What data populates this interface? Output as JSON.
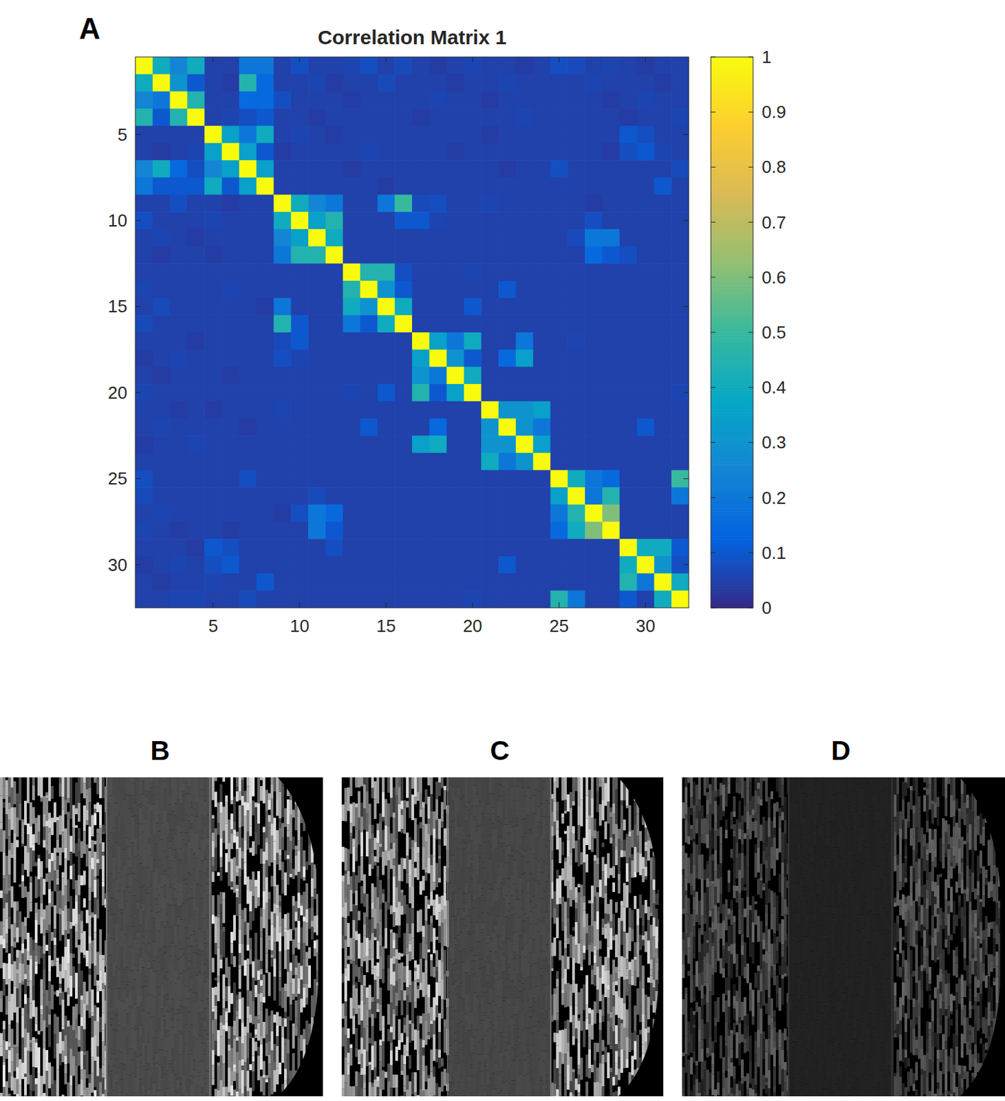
{
  "chart_data": {
    "type": "heatmap",
    "title": "Correlation Matrix 1",
    "panel_label": "A",
    "xlim": [
      0.5,
      32.5
    ],
    "ylim": [
      0.5,
      32.5
    ],
    "xticks": [
      5,
      10,
      15,
      20,
      25,
      30
    ],
    "yticks": [
      5,
      10,
      15,
      20,
      25,
      30
    ],
    "colorbar": {
      "range": [
        0,
        1
      ],
      "ticks": [
        0,
        0.1,
        0.2,
        0.3,
        0.4,
        0.5,
        0.6,
        0.7,
        0.8,
        0.9,
        1
      ]
    },
    "cells": [
      [
        1,
        0.4,
        0.25,
        0.4,
        0.05,
        0.05,
        0.2,
        0.2,
        0.05,
        0.08,
        0.05,
        0.05,
        0.06,
        0.08,
        0.05,
        0.07,
        0.05,
        0.04,
        0.05,
        0.06,
        0.05,
        0.05,
        0.04,
        0.05,
        0.08,
        0.07,
        0.05,
        0.06,
        0.05,
        0.04,
        0.05,
        0.05
      ],
      [
        0.4,
        1,
        0.3,
        0.1,
        0.05,
        0.04,
        0.45,
        0.15,
        0.05,
        0.05,
        0.06,
        0.04,
        0.05,
        0.05,
        0.07,
        0.05,
        0.05,
        0.05,
        0.04,
        0.05,
        0.05,
        0.06,
        0.05,
        0.05,
        0.05,
        0.05,
        0.06,
        0.05,
        0.05,
        0.05,
        0.04,
        0.05
      ],
      [
        0.25,
        0.2,
        1,
        0.45,
        0.05,
        0.05,
        0.15,
        0.15,
        0.08,
        0.05,
        0.05,
        0.05,
        0.04,
        0.05,
        0.05,
        0.05,
        0.05,
        0.06,
        0.05,
        0.05,
        0.04,
        0.05,
        0.05,
        0.05,
        0.05,
        0.05,
        0.05,
        0.04,
        0.05,
        0.06,
        0.05,
        0.05
      ],
      [
        0.45,
        0.1,
        0.45,
        1,
        0.05,
        0.06,
        0.08,
        0.1,
        0.05,
        0.05,
        0.04,
        0.05,
        0.05,
        0.05,
        0.05,
        0.05,
        0.04,
        0.05,
        0.05,
        0.05,
        0.05,
        0.05,
        0.06,
        0.05,
        0.05,
        0.05,
        0.05,
        0.05,
        0.04,
        0.05,
        0.05,
        0.06
      ],
      [
        0.05,
        0.05,
        0.05,
        0.05,
        1,
        0.35,
        0.2,
        0.4,
        0.05,
        0.06,
        0.05,
        0.04,
        0.05,
        0.05,
        0.05,
        0.05,
        0.05,
        0.05,
        0.05,
        0.05,
        0.04,
        0.05,
        0.05,
        0.05,
        0.05,
        0.05,
        0.05,
        0.05,
        0.1,
        0.08,
        0.05,
        0.05
      ],
      [
        0.05,
        0.04,
        0.05,
        0.06,
        0.35,
        1,
        0.35,
        0.1,
        0.04,
        0.05,
        0.05,
        0.05,
        0.05,
        0.06,
        0.05,
        0.05,
        0.05,
        0.05,
        0.04,
        0.05,
        0.05,
        0.05,
        0.05,
        0.05,
        0.05,
        0.05,
        0.05,
        0.04,
        0.08,
        0.1,
        0.06,
        0.05
      ],
      [
        0.25,
        0.4,
        0.15,
        0.08,
        0.25,
        0.35,
        1,
        0.35,
        0.05,
        0.05,
        0.05,
        0.05,
        0.04,
        0.05,
        0.05,
        0.05,
        0.05,
        0.05,
        0.05,
        0.05,
        0.05,
        0.04,
        0.05,
        0.05,
        0.08,
        0.05,
        0.05,
        0.05,
        0.05,
        0.05,
        0.05,
        0.07
      ],
      [
        0.2,
        0.1,
        0.1,
        0.1,
        0.4,
        0.1,
        0.35,
        1,
        0.05,
        0.05,
        0.05,
        0.05,
        0.05,
        0.05,
        0.04,
        0.05,
        0.05,
        0.05,
        0.05,
        0.05,
        0.05,
        0.05,
        0.05,
        0.05,
        0.05,
        0.05,
        0.05,
        0.05,
        0.05,
        0.05,
        0.1,
        0.05
      ],
      [
        0.05,
        0.05,
        0.08,
        0.05,
        0.05,
        0.04,
        0.05,
        0.05,
        1,
        0.4,
        0.25,
        0.2,
        0.05,
        0.05,
        0.2,
        0.5,
        0.07,
        0.08,
        0.05,
        0.05,
        0.06,
        0.05,
        0.05,
        0.05,
        0.05,
        0.05,
        0.04,
        0.05,
        0.05,
        0.05,
        0.05,
        0.05
      ],
      [
        0.08,
        0.05,
        0.05,
        0.05,
        0.06,
        0.05,
        0.05,
        0.05,
        0.4,
        1,
        0.35,
        0.45,
        0.05,
        0.05,
        0.05,
        0.1,
        0.1,
        0.06,
        0.05,
        0.05,
        0.05,
        0.05,
        0.05,
        0.05,
        0.05,
        0.05,
        0.08,
        0.05,
        0.05,
        0.05,
        0.05,
        0.05
      ],
      [
        0.05,
        0.06,
        0.05,
        0.04,
        0.05,
        0.05,
        0.05,
        0.05,
        0.25,
        0.35,
        1,
        0.4,
        0.05,
        0.05,
        0.05,
        0.05,
        0.05,
        0.05,
        0.05,
        0.05,
        0.05,
        0.05,
        0.05,
        0.05,
        0.05,
        0.07,
        0.2,
        0.2,
        0.05,
        0.05,
        0.05,
        0.05
      ],
      [
        0.05,
        0.04,
        0.05,
        0.05,
        0.04,
        0.05,
        0.05,
        0.05,
        0.2,
        0.45,
        0.45,
        1,
        0.05,
        0.05,
        0.05,
        0.05,
        0.05,
        0.05,
        0.05,
        0.05,
        0.05,
        0.05,
        0.05,
        0.05,
        0.05,
        0.05,
        0.15,
        0.1,
        0.08,
        0.05,
        0.05,
        0.05
      ],
      [
        0.05,
        0.05,
        0.05,
        0.05,
        0.05,
        0.05,
        0.05,
        0.05,
        0.05,
        0.05,
        0.05,
        0.05,
        1,
        0.45,
        0.45,
        0.08,
        0.05,
        0.05,
        0.05,
        0.06,
        0.05,
        0.05,
        0.05,
        0.05,
        0.05,
        0.05,
        0.05,
        0.05,
        0.05,
        0.05,
        0.05,
        0.05
      ],
      [
        0.06,
        0.05,
        0.05,
        0.05,
        0.05,
        0.06,
        0.05,
        0.05,
        0.05,
        0.05,
        0.05,
        0.05,
        0.45,
        1,
        0.3,
        0.1,
        0.05,
        0.05,
        0.05,
        0.05,
        0.05,
        0.1,
        0.05,
        0.05,
        0.05,
        0.05,
        0.05,
        0.05,
        0.05,
        0.05,
        0.05,
        0.05
      ],
      [
        0.05,
        0.07,
        0.05,
        0.05,
        0.05,
        0.05,
        0.05,
        0.04,
        0.2,
        0.05,
        0.05,
        0.05,
        0.4,
        0.3,
        1,
        0.4,
        0.05,
        0.05,
        0.05,
        0.1,
        0.05,
        0.05,
        0.05,
        0.05,
        0.05,
        0.05,
        0.05,
        0.05,
        0.05,
        0.05,
        0.05,
        0.05
      ],
      [
        0.07,
        0.05,
        0.05,
        0.05,
        0.05,
        0.05,
        0.05,
        0.05,
        0.45,
        0.1,
        0.05,
        0.05,
        0.2,
        0.1,
        0.4,
        1,
        0.05,
        0.05,
        0.05,
        0.05,
        0.05,
        0.05,
        0.05,
        0.05,
        0.05,
        0.05,
        0.05,
        0.05,
        0.05,
        0.05,
        0.05,
        0.05
      ],
      [
        0.05,
        0.05,
        0.05,
        0.04,
        0.05,
        0.05,
        0.05,
        0.05,
        0.07,
        0.1,
        0.05,
        0.05,
        0.05,
        0.05,
        0.05,
        0.05,
        1,
        0.35,
        0.2,
        0.4,
        0.05,
        0.05,
        0.2,
        0.05,
        0.05,
        0.06,
        0.05,
        0.05,
        0.05,
        0.05,
        0.05,
        0.05
      ],
      [
        0.04,
        0.05,
        0.06,
        0.05,
        0.05,
        0.05,
        0.05,
        0.05,
        0.08,
        0.06,
        0.05,
        0.05,
        0.05,
        0.05,
        0.05,
        0.05,
        0.35,
        1,
        0.3,
        0.1,
        0.05,
        0.15,
        0.35,
        0.05,
        0.05,
        0.05,
        0.05,
        0.05,
        0.05,
        0.05,
        0.05,
        0.05
      ],
      [
        0.05,
        0.04,
        0.05,
        0.05,
        0.05,
        0.04,
        0.05,
        0.05,
        0.05,
        0.05,
        0.05,
        0.05,
        0.05,
        0.05,
        0.05,
        0.05,
        0.3,
        0.2,
        1,
        0.4,
        0.05,
        0.05,
        0.05,
        0.05,
        0.05,
        0.05,
        0.05,
        0.05,
        0.05,
        0.05,
        0.05,
        0.05
      ],
      [
        0.06,
        0.05,
        0.05,
        0.05,
        0.05,
        0.05,
        0.05,
        0.05,
        0.05,
        0.05,
        0.05,
        0.05,
        0.06,
        0.05,
        0.1,
        0.05,
        0.45,
        0.1,
        0.35,
        1,
        0.05,
        0.05,
        0.05,
        0.05,
        0.05,
        0.05,
        0.05,
        0.05,
        0.05,
        0.05,
        0.05,
        0.06
      ],
      [
        0.05,
        0.05,
        0.04,
        0.05,
        0.04,
        0.05,
        0.05,
        0.05,
        0.06,
        0.05,
        0.05,
        0.05,
        0.05,
        0.05,
        0.05,
        0.05,
        0.05,
        0.05,
        0.05,
        0.05,
        1,
        0.3,
        0.3,
        0.35,
        0.05,
        0.05,
        0.05,
        0.05,
        0.05,
        0.05,
        0.05,
        0.05
      ],
      [
        0.05,
        0.06,
        0.05,
        0.05,
        0.05,
        0.05,
        0.04,
        0.05,
        0.05,
        0.05,
        0.05,
        0.05,
        0.05,
        0.1,
        0.05,
        0.05,
        0.05,
        0.15,
        0.05,
        0.05,
        0.3,
        1,
        0.3,
        0.2,
        0.05,
        0.05,
        0.05,
        0.05,
        0.05,
        0.1,
        0.05,
        0.05
      ],
      [
        0.04,
        0.05,
        0.05,
        0.06,
        0.05,
        0.05,
        0.05,
        0.05,
        0.05,
        0.05,
        0.05,
        0.05,
        0.05,
        0.05,
        0.05,
        0.05,
        0.35,
        0.4,
        0.05,
        0.05,
        0.3,
        0.3,
        1,
        0.35,
        0.05,
        0.05,
        0.05,
        0.05,
        0.05,
        0.05,
        0.05,
        0.05
      ],
      [
        0.05,
        0.05,
        0.05,
        0.05,
        0.05,
        0.05,
        0.05,
        0.05,
        0.05,
        0.05,
        0.05,
        0.05,
        0.05,
        0.05,
        0.05,
        0.05,
        0.05,
        0.05,
        0.05,
        0.05,
        0.4,
        0.2,
        0.3,
        1,
        0.05,
        0.05,
        0.05,
        0.05,
        0.05,
        0.05,
        0.05,
        0.05
      ],
      [
        0.08,
        0.05,
        0.05,
        0.05,
        0.05,
        0.05,
        0.08,
        0.05,
        0.05,
        0.05,
        0.05,
        0.05,
        0.05,
        0.05,
        0.05,
        0.05,
        0.05,
        0.05,
        0.05,
        0.05,
        0.05,
        0.05,
        0.05,
        0.05,
        1,
        0.4,
        0.2,
        0.15,
        0.05,
        0.05,
        0.05,
        0.5
      ],
      [
        0.07,
        0.05,
        0.05,
        0.05,
        0.05,
        0.05,
        0.05,
        0.05,
        0.05,
        0.05,
        0.07,
        0.05,
        0.05,
        0.05,
        0.05,
        0.05,
        0.05,
        0.05,
        0.05,
        0.05,
        0.05,
        0.05,
        0.05,
        0.05,
        0.35,
        1,
        0.2,
        0.45,
        0.05,
        0.05,
        0.05,
        0.2
      ],
      [
        0.05,
        0.06,
        0.05,
        0.05,
        0.05,
        0.05,
        0.05,
        0.05,
        0.04,
        0.08,
        0.2,
        0.15,
        0.05,
        0.05,
        0.05,
        0.05,
        0.05,
        0.05,
        0.05,
        0.05,
        0.05,
        0.05,
        0.05,
        0.05,
        0.2,
        0.45,
        1,
        0.6,
        0.05,
        0.05,
        0.05,
        0.05
      ],
      [
        0.06,
        0.05,
        0.04,
        0.05,
        0.05,
        0.04,
        0.05,
        0.05,
        0.05,
        0.05,
        0.2,
        0.1,
        0.05,
        0.05,
        0.05,
        0.05,
        0.05,
        0.05,
        0.05,
        0.05,
        0.05,
        0.05,
        0.05,
        0.05,
        0.15,
        0.4,
        0.6,
        1,
        0.05,
        0.05,
        0.05,
        0.05
      ],
      [
        0.05,
        0.05,
        0.05,
        0.04,
        0.1,
        0.08,
        0.05,
        0.05,
        0.05,
        0.05,
        0.05,
        0.08,
        0.05,
        0.05,
        0.05,
        0.05,
        0.05,
        0.05,
        0.05,
        0.05,
        0.05,
        0.05,
        0.05,
        0.05,
        0.05,
        0.05,
        0.05,
        0.05,
        1,
        0.4,
        0.4,
        0.1
      ],
      [
        0.04,
        0.05,
        0.06,
        0.05,
        0.08,
        0.1,
        0.05,
        0.05,
        0.05,
        0.05,
        0.05,
        0.05,
        0.05,
        0.05,
        0.05,
        0.05,
        0.05,
        0.05,
        0.05,
        0.05,
        0.05,
        0.1,
        0.05,
        0.05,
        0.05,
        0.05,
        0.05,
        0.05,
        0.4,
        1,
        0.3,
        0.08
      ],
      [
        0.05,
        0.04,
        0.05,
        0.05,
        0.06,
        0.05,
        0.05,
        0.1,
        0.05,
        0.05,
        0.05,
        0.05,
        0.05,
        0.05,
        0.05,
        0.05,
        0.05,
        0.05,
        0.05,
        0.05,
        0.05,
        0.05,
        0.05,
        0.05,
        0.05,
        0.05,
        0.05,
        0.05,
        0.45,
        0.2,
        1,
        0.4
      ],
      [
        0.05,
        0.05,
        0.06,
        0.06,
        0.05,
        0.05,
        0.07,
        0.05,
        0.05,
        0.05,
        0.05,
        0.05,
        0.05,
        0.05,
        0.05,
        0.05,
        0.05,
        0.05,
        0.05,
        0.06,
        0.05,
        0.05,
        0.05,
        0.05,
        0.45,
        0.2,
        0.05,
        0.05,
        0.1,
        0.05,
        0.4,
        1
      ]
    ]
  },
  "panels": [
    {
      "label": "B"
    },
    {
      "label": "C"
    },
    {
      "label": "D"
    }
  ]
}
